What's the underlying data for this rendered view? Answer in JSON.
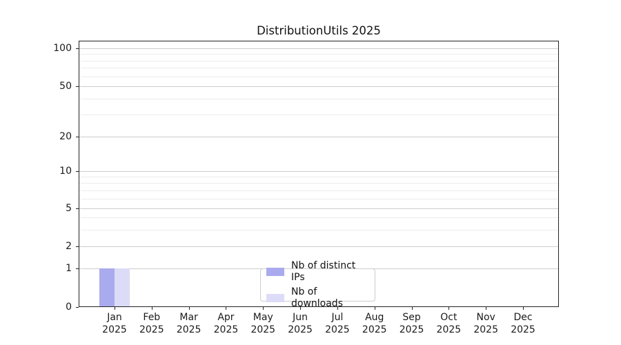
{
  "chart_data": {
    "type": "bar",
    "title": "DistributionUtils 2025",
    "categories": [
      "Jan 2025",
      "Feb 2025",
      "Mar 2025",
      "Apr 2025",
      "May 2025",
      "Jun 2025",
      "Jul 2025",
      "Aug 2025",
      "Sep 2025",
      "Oct 2025",
      "Nov 2025",
      "Dec 2025"
    ],
    "x_tick_month": [
      "Jan",
      "Feb",
      "Mar",
      "Apr",
      "May",
      "Jun",
      "Jul",
      "Aug",
      "Sep",
      "Oct",
      "Nov",
      "Dec"
    ],
    "x_tick_year": "2025",
    "series": [
      {
        "name": "Nb of distinct IPs",
        "color": "#aaaaee",
        "values": [
          1,
          0,
          0,
          0,
          0,
          0,
          0,
          0,
          0,
          0,
          0,
          0
        ]
      },
      {
        "name": "Nb of downloads",
        "color": "#dcdcf8",
        "values": [
          1,
          0,
          0,
          0,
          0,
          0,
          0,
          0,
          0,
          0,
          0,
          0
        ]
      }
    ],
    "y_axis": {
      "scale": "symlog",
      "major_ticks": [
        0,
        1,
        2,
        5,
        10,
        20,
        50,
        100
      ],
      "minor_gridlines": [
        3,
        4,
        6,
        7,
        8,
        9,
        30,
        40,
        60,
        70,
        80,
        90
      ],
      "ylim": [
        0,
        115
      ]
    },
    "grid": {
      "horizontal": true,
      "vertical": false
    },
    "legend": {
      "position": "inside-bottom-center"
    }
  },
  "colors": {
    "grid_major": "#cdcdcd",
    "grid_minor": "#ececec",
    "spine": "#222222",
    "text": "#1a1a1a",
    "legend_border": "#cccccc",
    "legend_background": "#ffffff",
    "plot_background": "#ffffff"
  }
}
